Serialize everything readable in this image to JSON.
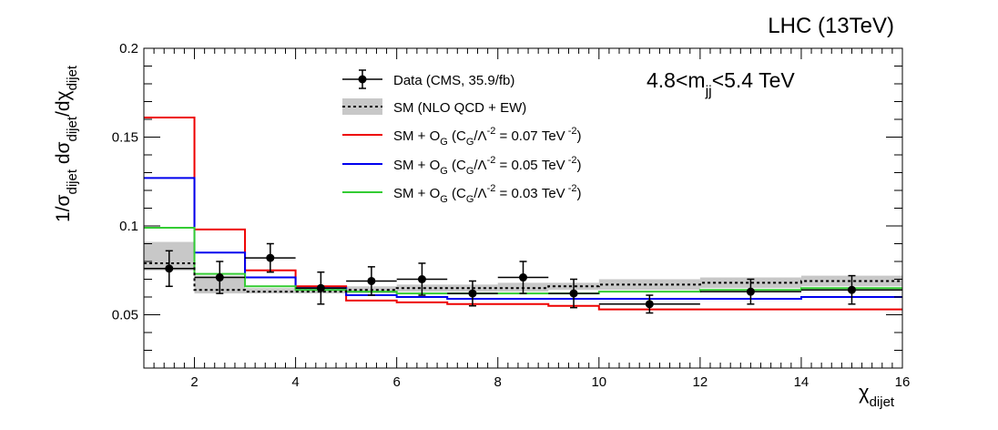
{
  "header": {
    "experiment": "LHC (13TeV)"
  },
  "chart_data": {
    "type": "line",
    "style": "step-histogram-with-data-points",
    "mass_window": {
      "prefix": "4.8<m",
      "sub": "jj",
      "suffix": "<5.4 TeV"
    },
    "xlabel": {
      "main": "χ",
      "sub": "dijet"
    },
    "ylabel": {
      "p1": "1/σ",
      "s1": "dijet",
      "p2": " dσ",
      "s2": "dijet",
      "p3": "/dχ",
      "s3": "dijet"
    },
    "xlim": [
      1,
      16
    ],
    "ylim": [
      0.02,
      0.2
    ],
    "x_ticks": [
      2,
      4,
      6,
      8,
      10,
      12,
      14,
      16
    ],
    "y_ticks": [
      0.05,
      0.1,
      0.15,
      0.2
    ],
    "x_tick_labels": [
      "2",
      "4",
      "6",
      "8",
      "10",
      "12",
      "14",
      "16"
    ],
    "y_tick_labels": [
      "0.05",
      "0.1",
      "0.15",
      "0.2"
    ],
    "bin_edges": [
      1,
      2,
      3,
      4,
      5,
      6,
      7,
      8,
      9,
      10,
      12,
      14,
      16
    ],
    "legend": {
      "data": "Data (CMS, 35.9/fb)",
      "sm": "SM (NLO QCD + EW)",
      "og_prefix": "SM + O",
      "og_sub": "G",
      "og_mid1": " (C",
      "og_mid2": "/Λ",
      "og_sup": "-2",
      "og_unit_sup": " -2",
      "og_unit": "TeV",
      "red_value": "= 0.07",
      "blue_value": "= 0.05",
      "green_value": "= 0.03"
    },
    "data": {
      "name": "Data (CMS, 35.9/fb)",
      "x": [
        1.5,
        2.5,
        3.5,
        4.5,
        5.5,
        6.5,
        7.5,
        8.5,
        9.5,
        11,
        13,
        15
      ],
      "xerr": [
        0.5,
        0.5,
        0.5,
        0.5,
        0.5,
        0.5,
        0.5,
        0.5,
        0.5,
        1,
        1,
        1
      ],
      "y": [
        0.076,
        0.071,
        0.082,
        0.065,
        0.069,
        0.07,
        0.062,
        0.071,
        0.062,
        0.056,
        0.063,
        0.064
      ],
      "yerr": [
        0.01,
        0.009,
        0.008,
        0.009,
        0.008,
        0.009,
        0.007,
        0.009,
        0.008,
        0.005,
        0.007,
        0.008
      ]
    },
    "sm": {
      "name": "SM (NLO QCD + EW)",
      "values": [
        0.079,
        0.064,
        0.063,
        0.063,
        0.064,
        0.065,
        0.065,
        0.065,
        0.066,
        0.067,
        0.068,
        0.069
      ],
      "band_low": [
        0.075,
        0.062,
        0.062,
        0.062,
        0.062,
        0.063,
        0.063,
        0.063,
        0.064,
        0.064,
        0.065,
        0.066
      ],
      "band_high": [
        0.091,
        0.072,
        0.065,
        0.066,
        0.066,
        0.067,
        0.067,
        0.068,
        0.068,
        0.07,
        0.071,
        0.072
      ]
    },
    "series": [
      {
        "name": "SM + O_G (C_G/Λ^-2 = 0.07 TeV^-2)",
        "color": "#ee0000",
        "values": [
          0.161,
          0.098,
          0.075,
          0.066,
          0.058,
          0.057,
          0.056,
          0.056,
          0.055,
          0.053,
          0.053,
          0.053
        ]
      },
      {
        "name": "SM + O_G (C_G/Λ^-2 = 0.05 TeV^-2)",
        "color": "#0000ee",
        "values": [
          0.127,
          0.085,
          0.071,
          0.065,
          0.061,
          0.06,
          0.059,
          0.059,
          0.059,
          0.059,
          0.059,
          0.06
        ]
      },
      {
        "name": "SM + O_G (C_G/Λ^-2 = 0.03 TeV^-2)",
        "color": "#33cc33",
        "values": [
          0.099,
          0.073,
          0.066,
          0.064,
          0.063,
          0.062,
          0.062,
          0.062,
          0.062,
          0.063,
          0.064,
          0.065
        ]
      }
    ]
  }
}
